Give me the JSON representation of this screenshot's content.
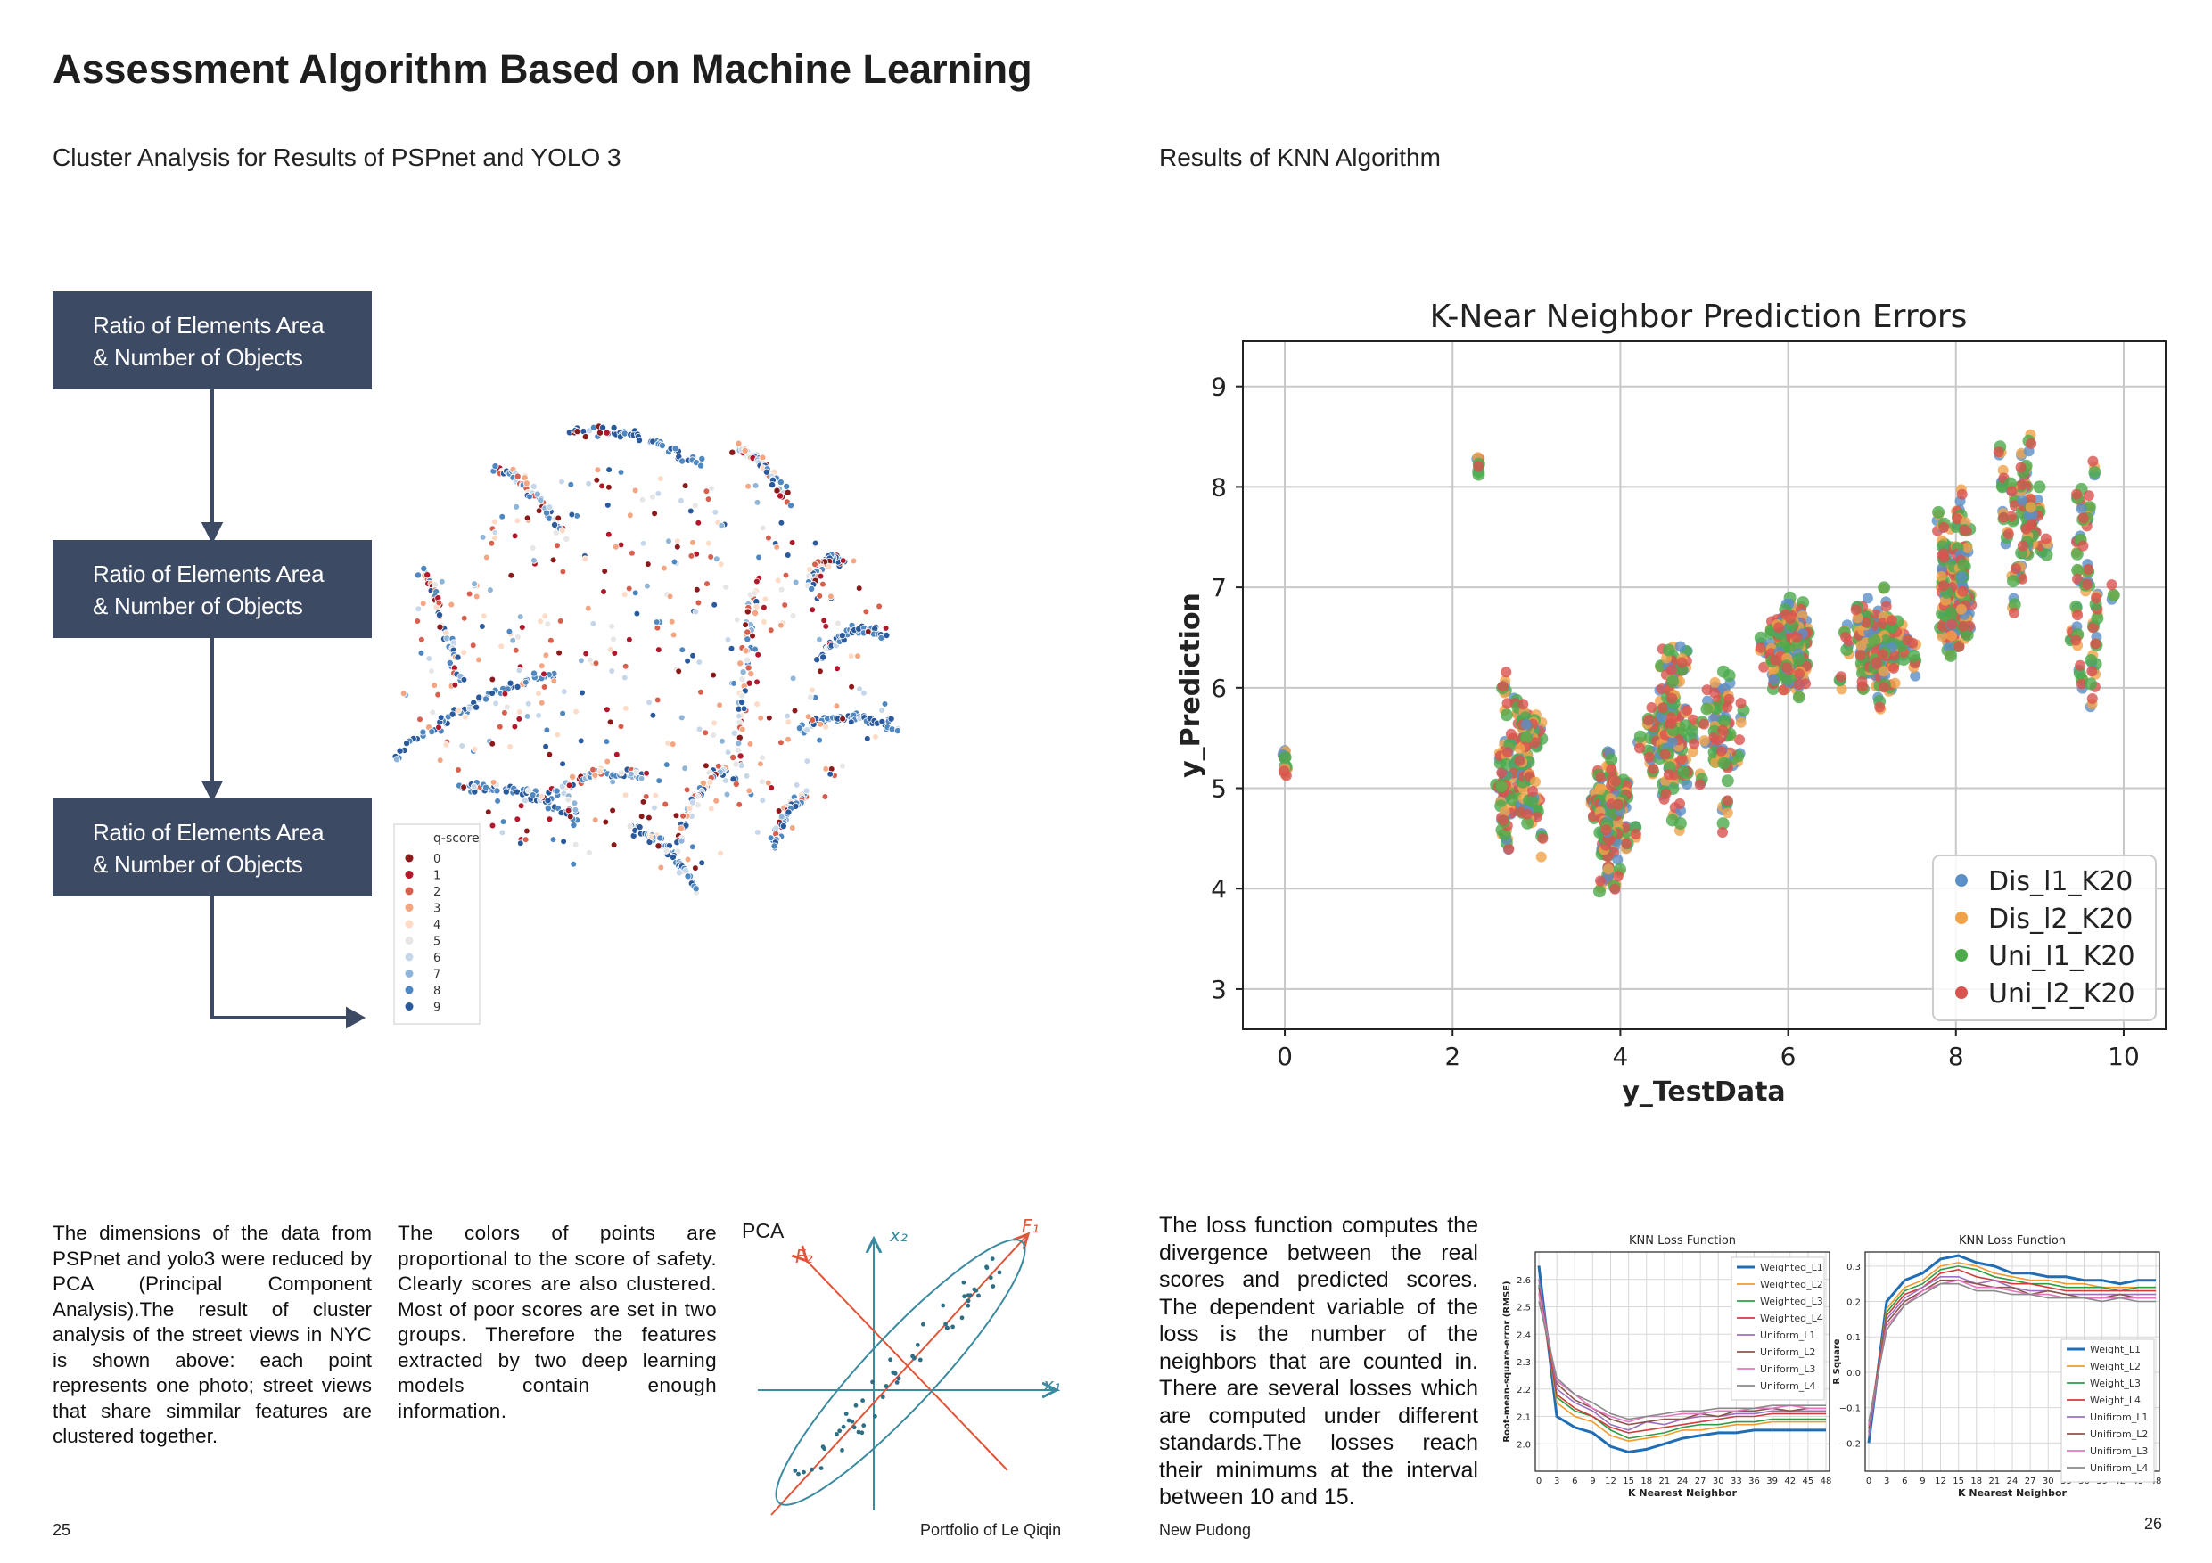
{
  "page": {
    "title": "Assessment Algorithm Based on Machine Learning",
    "left_section_title": "Cluster Analysis for Results of PSPnet and YOLO 3",
    "right_section_title": "Results of KNN Algorithm"
  },
  "flow": {
    "boxes": [
      {
        "line1": "Ratio of Elements Area",
        "line2": "& Number of Objects"
      },
      {
        "line1": "Ratio of Elements Area",
        "line2": "& Number of Objects"
      },
      {
        "line1": "Ratio of Elements Area",
        "line2": "& Number of Objects"
      }
    ]
  },
  "tsne": {
    "legend_title": "q-score",
    "legend_items": [
      "0",
      "1",
      "2",
      "3",
      "4",
      "5",
      "6",
      "7",
      "8",
      "9"
    ],
    "colors": [
      "#8b1a1a",
      "#b2182b",
      "#d6604d",
      "#f4a582",
      "#fddbc7",
      "#e6e6e6",
      "#c6d7ea",
      "#8eb4d8",
      "#4f87c0",
      "#2b5a9c"
    ]
  },
  "text": {
    "para1": "The dimensions of the data from PSPnet and yolo3 were reduced by PCA (Principal Component Analysis).The result of cluster analysis of the street views in NYC is shown above: each point represents one photo; street views that share simmilar features are clustered together.",
    "para2": "The colors of points are proportional to the score of safety. Clearly scores are also clustered. Most of poor scores are set in two groups. Therefore the features extracted by two deep learning models contain enough information.",
    "pca_label": "PCA",
    "para3": "The loss function computes the divergence between the real scores and predicted scores. The dependent variable of the loss is the number of the neighbors that are counted in. There are several losses which are computed under different standards.The losses reach their minimums at the interval between  10 and 15."
  },
  "pca": {
    "f1": "F₁",
    "f2": "F₂",
    "x1": "x₁",
    "x2": "x₂"
  },
  "footer": {
    "left_page": "25",
    "left_credit": "Portfolio of Le Qiqin",
    "right_credit": "New Pudong",
    "right_page": "26"
  },
  "chart_data": [
    {
      "type": "scatter",
      "title": "K-Near Neighbor Prediction Errors",
      "xlabel": "y_TestData",
      "ylabel": "y_Prediction",
      "xlim": [
        -0.5,
        10.5
      ],
      "ylim": [
        2.6,
        9.45
      ],
      "xticks": [
        0,
        2,
        4,
        6,
        8,
        10
      ],
      "yticks": [
        3,
        4,
        5,
        6,
        7,
        8,
        9
      ],
      "grid": true,
      "legend_position": "lower-right",
      "series": [
        {
          "name": "Dis_l1_K20",
          "color": "#5b8fc7"
        },
        {
          "name": "Dis_l2_K20",
          "color": "#f0a24a"
        },
        {
          "name": "Uni_l1_K20",
          "color": "#4caa4c"
        },
        {
          "name": "Uni_l2_K20",
          "color": "#d9534f"
        }
      ],
      "clusters": [
        {
          "x": 0,
          "yc": 5.2,
          "sx": 0.0,
          "sy": 0.15,
          "n": 4
        },
        {
          "x": 2.3,
          "yc": 8.25,
          "sx": 0.0,
          "sy": 0.08,
          "n": 3
        },
        {
          "x": 2.8,
          "yc": 5.3,
          "sx": 0.35,
          "sy": 0.95,
          "n": 60
        },
        {
          "x": 3.9,
          "yc": 4.7,
          "sx": 0.3,
          "sy": 0.75,
          "n": 55
        },
        {
          "x": 4.6,
          "yc": 5.6,
          "sx": 0.35,
          "sy": 0.9,
          "n": 55
        },
        {
          "x": 5.2,
          "yc": 5.5,
          "sx": 0.3,
          "sy": 0.8,
          "n": 30
        },
        {
          "x": 6.0,
          "yc": 6.4,
          "sx": 0.35,
          "sy": 0.5,
          "n": 80
        },
        {
          "x": 7.1,
          "yc": 6.4,
          "sx": 0.45,
          "sy": 0.55,
          "n": 70
        },
        {
          "x": 8.0,
          "yc": 7.0,
          "sx": 0.25,
          "sy": 0.9,
          "n": 60
        },
        {
          "x": 8.8,
          "yc": 7.6,
          "sx": 0.35,
          "sy": 0.9,
          "n": 35
        },
        {
          "x": 9.6,
          "yc": 7.0,
          "sx": 0.25,
          "sy": 1.3,
          "n": 25
        }
      ]
    },
    {
      "type": "line",
      "title": "KNN Loss Function",
      "xlabel": "K Nearest Neighbor",
      "ylabel": "Root-mean-square-error (RMSE)",
      "x": [
        0,
        3,
        6,
        9,
        12,
        15,
        18,
        21,
        24,
        27,
        30,
        33,
        36,
        39,
        42,
        45,
        48
      ],
      "xticks": [
        "0",
        "3",
        "6",
        "9",
        "12",
        "15",
        "18",
        "21",
        "24",
        "27",
        "30",
        "33",
        "36",
        "39",
        "42",
        "45",
        "48"
      ],
      "yticks": [
        "2.0",
        "2.1",
        "2.2",
        "2.3",
        "2.4",
        "2.5",
        "2.6"
      ],
      "ylim": [
        1.9,
        2.7
      ],
      "grid": true,
      "legend_position": "upper-right",
      "series": [
        {
          "name": "Weighted_L1",
          "color": "#1f6db5",
          "values": [
            2.65,
            2.1,
            2.06,
            2.04,
            1.99,
            1.97,
            1.98,
            2.0,
            2.02,
            2.03,
            2.04,
            2.04,
            2.05,
            2.05,
            2.05,
            2.05,
            2.05
          ]
        },
        {
          "name": "Weighted_L2",
          "color": "#f39a2b",
          "values": [
            2.6,
            2.15,
            2.1,
            2.08,
            2.03,
            2.01,
            2.02,
            2.03,
            2.05,
            2.05,
            2.06,
            2.07,
            2.07,
            2.08,
            2.08,
            2.08,
            2.08
          ]
        },
        {
          "name": "Weighted_L3",
          "color": "#2e9e44",
          "values": [
            2.58,
            2.17,
            2.12,
            2.1,
            2.05,
            2.02,
            2.03,
            2.04,
            2.06,
            2.07,
            2.07,
            2.08,
            2.08,
            2.09,
            2.09,
            2.09,
            2.09
          ]
        },
        {
          "name": "Weighted_L4",
          "color": "#d23c3c",
          "values": [
            2.55,
            2.18,
            2.13,
            2.1,
            2.06,
            2.04,
            2.05,
            2.06,
            2.07,
            2.08,
            2.09,
            2.1,
            2.1,
            2.11,
            2.11,
            2.11,
            2.11
          ]
        },
        {
          "name": "Uniform_L1",
          "color": "#9c6fc0",
          "values": [
            2.6,
            2.2,
            2.15,
            2.12,
            2.07,
            2.05,
            2.08,
            2.07,
            2.09,
            2.1,
            2.1,
            2.11,
            2.11,
            2.12,
            2.12,
            2.12,
            2.12
          ]
        },
        {
          "name": "Uniform_L2",
          "color": "#8c564b",
          "values": [
            2.57,
            2.22,
            2.16,
            2.13,
            2.09,
            2.07,
            2.08,
            2.09,
            2.09,
            2.11,
            2.1,
            2.12,
            2.12,
            2.13,
            2.12,
            2.13,
            2.13
          ]
        },
        {
          "name": "Uniform_L3",
          "color": "#e377c2",
          "values": [
            2.55,
            2.23,
            2.18,
            2.13,
            2.1,
            2.08,
            2.1,
            2.1,
            2.11,
            2.11,
            2.12,
            2.12,
            2.13,
            2.13,
            2.14,
            2.13,
            2.13
          ]
        },
        {
          "name": "Uniform_L4",
          "color": "#8a8a8a",
          "values": [
            2.52,
            2.24,
            2.18,
            2.15,
            2.11,
            2.09,
            2.1,
            2.11,
            2.12,
            2.12,
            2.13,
            2.13,
            2.13,
            2.14,
            2.14,
            2.14,
            2.14
          ]
        }
      ]
    },
    {
      "type": "line",
      "title": "KNN Loss Function",
      "xlabel": "K Nearest Neighbor",
      "ylabel": "R Square",
      "x": [
        0,
        3,
        6,
        9,
        12,
        15,
        18,
        21,
        24,
        27,
        30,
        33,
        36,
        39,
        42,
        45,
        48
      ],
      "xticks": [
        "0",
        "3",
        "6",
        "9",
        "12",
        "15",
        "18",
        "21",
        "24",
        "27",
        "30",
        "33",
        "36",
        "39",
        "42",
        "45",
        "48"
      ],
      "yticks": [
        "−0.2",
        "−0.1",
        "0.0",
        "0.1",
        "0.2",
        "0.3"
      ],
      "ylim": [
        -0.28,
        0.34
      ],
      "grid": true,
      "legend_position": "lower-right",
      "series": [
        {
          "name": "Weight_L1",
          "color": "#1f6db5",
          "values": [
            -0.2,
            0.2,
            0.26,
            0.28,
            0.32,
            0.33,
            0.31,
            0.3,
            0.28,
            0.28,
            0.27,
            0.27,
            0.26,
            0.26,
            0.25,
            0.26,
            0.26
          ]
        },
        {
          "name": "Weight_L2",
          "color": "#f39a2b",
          "values": [
            -0.18,
            0.18,
            0.24,
            0.26,
            0.3,
            0.31,
            0.3,
            0.28,
            0.27,
            0.26,
            0.26,
            0.25,
            0.25,
            0.24,
            0.24,
            0.24,
            0.24
          ]
        },
        {
          "name": "Weight_L3",
          "color": "#2e9e44",
          "values": [
            -0.17,
            0.17,
            0.23,
            0.25,
            0.29,
            0.3,
            0.29,
            0.27,
            0.26,
            0.25,
            0.25,
            0.24,
            0.24,
            0.24,
            0.23,
            0.24,
            0.24
          ]
        },
        {
          "name": "Weight_L4",
          "color": "#d23c3c",
          "values": [
            -0.15,
            0.16,
            0.22,
            0.24,
            0.28,
            0.29,
            0.27,
            0.26,
            0.25,
            0.25,
            0.24,
            0.23,
            0.23,
            0.23,
            0.23,
            0.23,
            0.23
          ]
        },
        {
          "name": "Unifirom_L1",
          "color": "#9c6fc0",
          "values": [
            -0.18,
            0.15,
            0.21,
            0.24,
            0.27,
            0.27,
            0.25,
            0.26,
            0.24,
            0.23,
            0.23,
            0.22,
            0.22,
            0.22,
            0.22,
            0.22,
            0.22
          ]
        },
        {
          "name": "Unifirom_L2",
          "color": "#8c564b",
          "values": [
            -0.16,
            0.14,
            0.2,
            0.23,
            0.26,
            0.26,
            0.25,
            0.24,
            0.24,
            0.22,
            0.23,
            0.22,
            0.21,
            0.21,
            0.22,
            0.21,
            0.21
          ]
        },
        {
          "name": "Unifirom_L3",
          "color": "#e377c2",
          "values": [
            -0.15,
            0.13,
            0.19,
            0.23,
            0.25,
            0.26,
            0.24,
            0.24,
            0.23,
            0.22,
            0.22,
            0.21,
            0.21,
            0.21,
            0.21,
            0.21,
            0.21
          ]
        },
        {
          "name": "Unifirom_L4",
          "color": "#8a8a8a",
          "values": [
            -0.14,
            0.12,
            0.19,
            0.22,
            0.25,
            0.25,
            0.23,
            0.23,
            0.22,
            0.22,
            0.21,
            0.21,
            0.21,
            0.2,
            0.21,
            0.2,
            0.2
          ]
        }
      ]
    }
  ]
}
